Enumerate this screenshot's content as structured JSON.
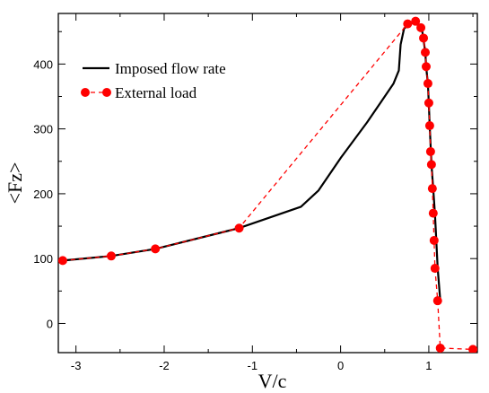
{
  "chart_data": {
    "type": "line",
    "title": "",
    "xlabel": "V/c",
    "ylabel": "<Fz>",
    "xlim": [
      -3.2,
      1.55
    ],
    "ylim": [
      -45,
      478
    ],
    "xticks": [
      -3,
      -2,
      -1,
      0,
      1
    ],
    "yticks": [
      0,
      100,
      200,
      300,
      400
    ],
    "xtick_labels": [
      "-3",
      "-2",
      "-1",
      "0",
      "1"
    ],
    "ytick_labels": [
      "0",
      "100",
      "200",
      "300",
      "400"
    ],
    "grid": false,
    "legend_position": "upper-left",
    "series": [
      {
        "name": "Imposed flow rate",
        "style": "solid",
        "color": "#000000",
        "x": [
          -3.15,
          -2.6,
          -2.1,
          -1.15,
          -0.45,
          -0.25,
          0.0,
          0.3,
          0.45,
          0.6,
          0.66,
          0.68,
          0.72,
          0.83,
          0.92,
          0.94,
          0.96,
          0.97,
          0.99,
          1.0,
          1.01,
          1.03,
          1.05,
          1.07,
          1.1,
          1.13
        ],
        "y": [
          97,
          104,
          115,
          147,
          180,
          205,
          255,
          310,
          340,
          370,
          390,
          430,
          455,
          465,
          455,
          438,
          418,
          395,
          370,
          340,
          305,
          245,
          208,
          168,
          85,
          35
        ]
      },
      {
        "name": "External load",
        "style": "dashed-markers",
        "color": "#ff0000",
        "x": [
          -3.15,
          -2.6,
          -2.1,
          -1.15,
          0.76,
          0.85,
          0.91,
          0.94,
          0.96,
          0.97,
          0.99,
          1.0,
          1.01,
          1.02,
          1.03,
          1.04,
          1.05,
          1.06,
          1.07,
          1.1,
          1.13,
          1.5
        ],
        "y": [
          97,
          104,
          115,
          147,
          462,
          466,
          456,
          440,
          418,
          396,
          370,
          340,
          305,
          265,
          245,
          208,
          170,
          128,
          85,
          35,
          -38,
          -40
        ]
      }
    ]
  }
}
